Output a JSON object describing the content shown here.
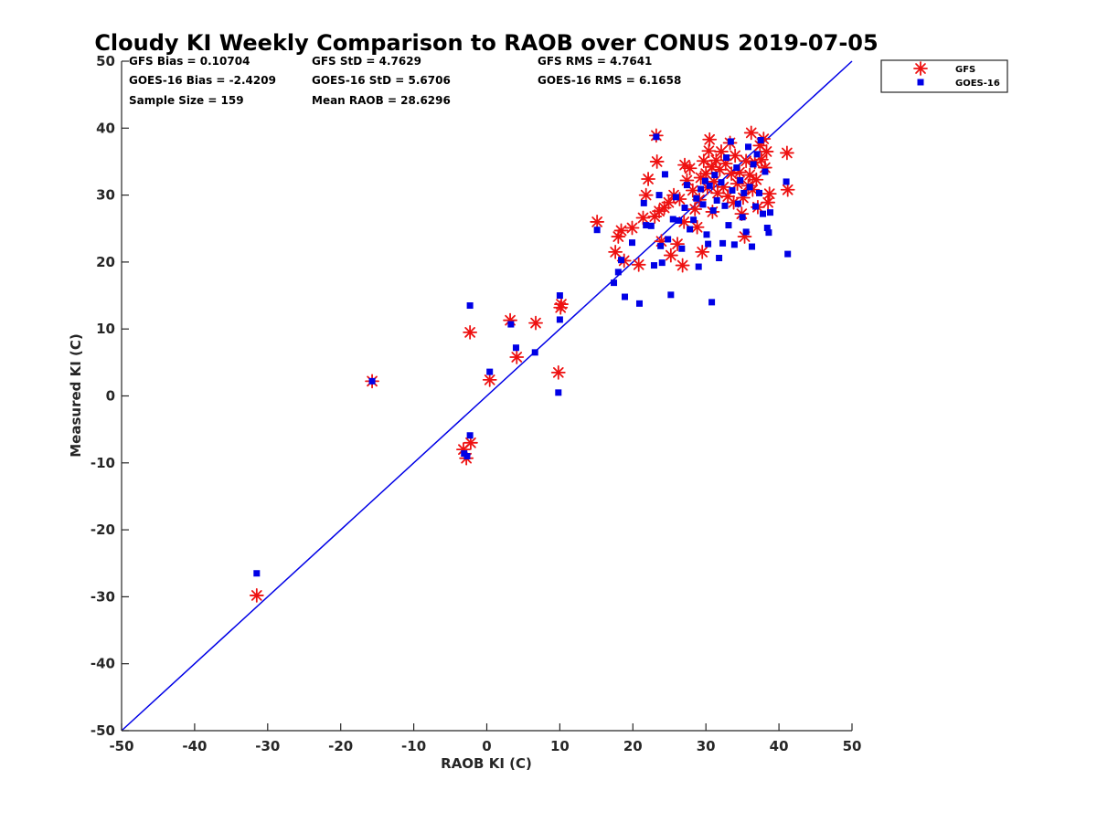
{
  "chart_data": {
    "type": "scatter",
    "title": "Cloudy KI Weekly Comparison to RAOB over CONUS 2019-07-05",
    "xlabel": "RAOB KI (C)",
    "ylabel": "Measured KI (C)",
    "xlim": [
      -50,
      50
    ],
    "ylim": [
      -50,
      50
    ],
    "xticks": [
      -50,
      -40,
      -30,
      -20,
      -10,
      0,
      10,
      20,
      30,
      40,
      50
    ],
    "yticks": [
      -50,
      -40,
      -30,
      -20,
      -10,
      0,
      10,
      20,
      30,
      40,
      50
    ],
    "grid": false,
    "legend_position": "outside-top-right",
    "stats": [
      [
        "GFS Bias = 0.10704",
        "GFS StD = 4.7629",
        "GFS RMS = 4.7641"
      ],
      [
        "GOES-16 Bias = -2.4209",
        "GOES-16 StD = 5.6706",
        "GOES-16 RMS = 6.1658"
      ],
      [
        "Sample Size = 159",
        "Mean RAOB = 28.6296"
      ]
    ],
    "reference_line": {
      "x": [
        -50,
        50
      ],
      "y": [
        -50,
        50
      ],
      "color": "#0000e6"
    },
    "series": [
      {
        "name": "GFS",
        "marker": "asterisk",
        "color": "#ee1111",
        "points": [
          [
            -31.5,
            -29.8
          ],
          [
            -15.7,
            2.2
          ],
          [
            -3.2,
            -8
          ],
          [
            -2.8,
            -9.3
          ],
          [
            -2.2,
            -7
          ],
          [
            -2.3,
            9.5
          ],
          [
            0.4,
            2.4
          ],
          [
            3.2,
            11.3
          ],
          [
            4.1,
            5.8
          ],
          [
            6.7,
            10.9
          ],
          [
            9.8,
            3.5
          ],
          [
            10.1,
            13.2
          ],
          [
            10.2,
            13.7
          ],
          [
            15.1,
            26
          ],
          [
            17.6,
            21.5
          ],
          [
            18,
            23.8
          ],
          [
            18.4,
            24.7
          ],
          [
            18.8,
            20.2
          ],
          [
            19.9,
            25.1
          ],
          [
            20.8,
            19.6
          ],
          [
            21.4,
            26.6
          ],
          [
            21.8,
            30
          ],
          [
            22.1,
            32.4
          ],
          [
            23,
            26.8
          ],
          [
            23.2,
            38.9
          ],
          [
            23.3,
            35
          ],
          [
            23.6,
            27.6
          ],
          [
            23.9,
            23.1
          ],
          [
            24.3,
            28.1
          ],
          [
            24.9,
            28.9
          ],
          [
            25.2,
            21
          ],
          [
            25.6,
            30
          ],
          [
            26.1,
            22.7
          ],
          [
            26.4,
            29.4
          ],
          [
            26.8,
            19.5
          ],
          [
            27,
            26
          ],
          [
            27.1,
            34.5
          ],
          [
            27.4,
            32.2
          ],
          [
            27.8,
            34
          ],
          [
            28.2,
            30.7
          ],
          [
            28.5,
            27.9
          ],
          [
            28.8,
            25.2
          ],
          [
            29.1,
            29.3
          ],
          [
            29.3,
            32.6
          ],
          [
            29.5,
            21.5
          ],
          [
            29.7,
            35.1
          ],
          [
            30,
            33.2
          ],
          [
            30.2,
            31.1
          ],
          [
            30.4,
            36.6
          ],
          [
            30.5,
            38.3
          ],
          [
            30.8,
            34.2
          ],
          [
            30.9,
            27.5
          ],
          [
            31.1,
            32
          ],
          [
            31.4,
            35.2
          ],
          [
            31.6,
            30.3
          ],
          [
            31.9,
            33.8
          ],
          [
            32.1,
            36.5
          ],
          [
            32.4,
            31.2
          ],
          [
            32.7,
            34.7
          ],
          [
            33,
            29.8
          ],
          [
            33.3,
            37.8
          ],
          [
            33.5,
            33.2
          ],
          [
            33.8,
            28.9
          ],
          [
            34,
            35.9
          ],
          [
            34.3,
            31.7
          ],
          [
            34.6,
            33.4
          ],
          [
            34.9,
            27.2
          ],
          [
            35.1,
            29.6
          ],
          [
            35.3,
            23.8
          ],
          [
            35.5,
            35.1
          ],
          [
            35.8,
            31.4
          ],
          [
            36,
            33
          ],
          [
            36.2,
            39.3
          ],
          [
            36.4,
            30.8
          ],
          [
            36.7,
            34.9
          ],
          [
            36.9,
            32.3
          ],
          [
            37.1,
            28.2
          ],
          [
            37.4,
            37.4
          ],
          [
            37.6,
            35.3
          ],
          [
            37.9,
            38.4
          ],
          [
            38.1,
            34.1
          ],
          [
            38.3,
            36.5
          ],
          [
            38.5,
            28.9
          ],
          [
            38.7,
            30.2
          ],
          [
            41.1,
            36.3
          ],
          [
            41.2,
            30.8
          ]
        ]
      },
      {
        "name": "GOES-16",
        "marker": "square",
        "color": "#0000e6",
        "points": [
          [
            -31.5,
            -26.5
          ],
          [
            -15.7,
            2.2
          ],
          [
            -3.1,
            -8.6
          ],
          [
            -2.7,
            -9
          ],
          [
            -2.3,
            -5.9
          ],
          [
            -2.3,
            13.5
          ],
          [
            0.4,
            3.6
          ],
          [
            3.3,
            10.7
          ],
          [
            4,
            7.2
          ],
          [
            6.6,
            6.5
          ],
          [
            9.8,
            0.5
          ],
          [
            10,
            15
          ],
          [
            10,
            11.4
          ],
          [
            15.1,
            24.8
          ],
          [
            17.4,
            16.9
          ],
          [
            18,
            18.5
          ],
          [
            18.4,
            20.3
          ],
          [
            18.9,
            14.8
          ],
          [
            19.9,
            22.9
          ],
          [
            20.9,
            13.8
          ],
          [
            21.5,
            28.8
          ],
          [
            21.8,
            25.5
          ],
          [
            22.5,
            25.4
          ],
          [
            22.9,
            19.5
          ],
          [
            23.2,
            38.7
          ],
          [
            23.6,
            30
          ],
          [
            23.8,
            22.4
          ],
          [
            24,
            19.9
          ],
          [
            24.4,
            33.1
          ],
          [
            24.8,
            23.4
          ],
          [
            25.2,
            15.1
          ],
          [
            25.5,
            26.4
          ],
          [
            25.9,
            29.7
          ],
          [
            26.3,
            26.2
          ],
          [
            26.7,
            22
          ],
          [
            27.1,
            28.1
          ],
          [
            27.4,
            31.5
          ],
          [
            27.8,
            24.9
          ],
          [
            28.3,
            26.3
          ],
          [
            28.7,
            29.5
          ],
          [
            29,
            19.3
          ],
          [
            29.3,
            30.9
          ],
          [
            29.6,
            28.6
          ],
          [
            29.9,
            32.1
          ],
          [
            30.1,
            24.1
          ],
          [
            30.3,
            22.7
          ],
          [
            30.5,
            31.4
          ],
          [
            30.8,
            14
          ],
          [
            31,
            27.7
          ],
          [
            31.2,
            33
          ],
          [
            31.5,
            29.2
          ],
          [
            31.8,
            20.6
          ],
          [
            32.1,
            31.9
          ],
          [
            32.3,
            22.8
          ],
          [
            32.6,
            28.4
          ],
          [
            32.8,
            35.6
          ],
          [
            33.1,
            25.5
          ],
          [
            33.4,
            38
          ],
          [
            33.6,
            30.7
          ],
          [
            33.9,
            22.6
          ],
          [
            34.2,
            34.1
          ],
          [
            34.4,
            28.7
          ],
          [
            34.7,
            32.2
          ],
          [
            35,
            26.7
          ],
          [
            35.2,
            30.3
          ],
          [
            35.5,
            24.5
          ],
          [
            35.8,
            37.2
          ],
          [
            36,
            31.2
          ],
          [
            36.3,
            22.3
          ],
          [
            36.5,
            34.6
          ],
          [
            36.8,
            28.3
          ],
          [
            37,
            36.1
          ],
          [
            37.3,
            30.3
          ],
          [
            37.5,
            38.2
          ],
          [
            37.8,
            27.2
          ],
          [
            38.1,
            33.5
          ],
          [
            38.4,
            25.1
          ],
          [
            38.6,
            24.4
          ],
          [
            38.8,
            27.4
          ],
          [
            41,
            32
          ],
          [
            41.2,
            21.2
          ]
        ]
      }
    ]
  }
}
